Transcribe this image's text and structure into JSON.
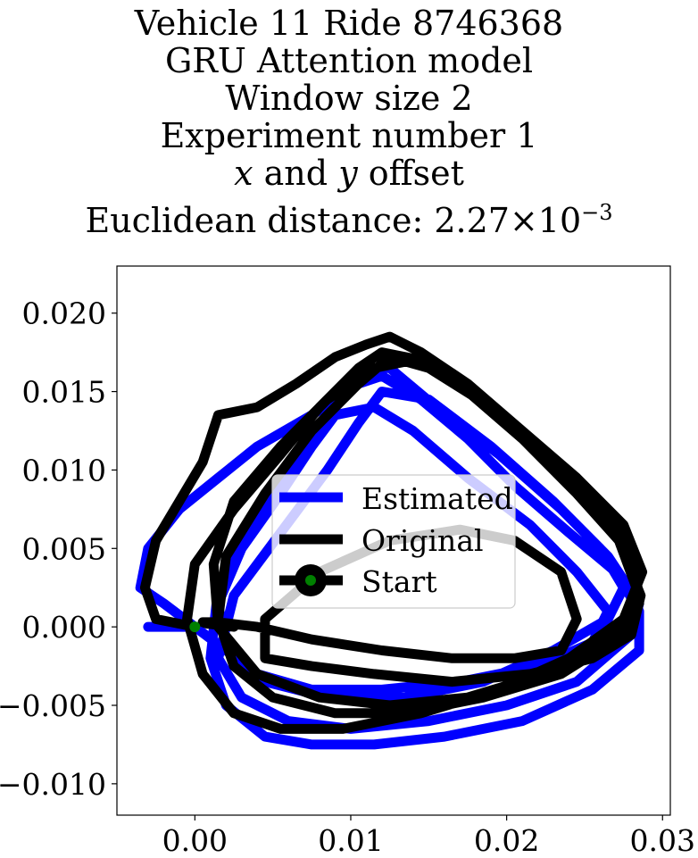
{
  "title": {
    "line1": "Vehicle 11 Ride 8746368",
    "line2": "GRU Attention model",
    "line3": "Window size 2",
    "line4": "Experiment number 1",
    "line5_var_x": "x",
    "line5_and": " and ",
    "line5_var_y": "y",
    "line5_rest": " offset",
    "line6_prefix": "Euclidean distance: 2.27",
    "line6_times": "×",
    "line6_base": "10",
    "line6_exp": "−3"
  },
  "colors": {
    "estimated": "#0000ff",
    "original": "#000000",
    "start_marker": "#008000"
  },
  "chart_data": {
    "type": "line",
    "xlim": [
      -0.005,
      0.0305
    ],
    "ylim": [
      -0.012,
      0.023
    ],
    "x_ticks": [
      0.0,
      0.01,
      0.02,
      0.03
    ],
    "x_tick_labels": [
      "0.00",
      "0.01",
      "0.02",
      "0.03"
    ],
    "y_ticks": [
      -0.01,
      -0.005,
      0.0,
      0.005,
      0.01,
      0.015,
      0.02
    ],
    "y_tick_labels": [
      "−0.010",
      "−0.005",
      "0.000",
      "0.005",
      "0.010",
      "0.015",
      "0.020"
    ],
    "grid": false,
    "legend_position": "center",
    "legend": [
      {
        "label": "Estimated",
        "color": "#0000ff",
        "style": "line"
      },
      {
        "label": "Original",
        "color": "#000000",
        "style": "line"
      },
      {
        "label": "Start",
        "color": "#000000",
        "style": "line-marker",
        "marker_color": "#008000"
      }
    ],
    "start_point": {
      "x": 0.0,
      "y": 0.0
    },
    "series": [
      {
        "name": "Estimated",
        "color": "#0000ff",
        "x": [
          0.0,
          -0.002,
          -0.0035,
          -0.003,
          -0.001,
          0.0015,
          0.004,
          0.0075,
          0.0105,
          0.012,
          0.0145,
          0.0175,
          0.0205,
          0.024,
          0.027,
          0.0285,
          0.0285,
          0.0255,
          0.021,
          0.016,
          0.0115,
          0.0075,
          0.0045,
          0.002,
          0.001,
          0.0015,
          0.0035,
          0.0065,
          0.009,
          0.011,
          0.0125,
          0.0155,
          0.0195,
          0.0235,
          0.0265,
          0.0285,
          0.028,
          0.0245,
          0.02,
          0.015,
          0.01,
          0.006,
          0.003,
          0.0015,
          0.0025,
          0.0055,
          0.0085,
          0.0105,
          0.012,
          0.015,
          0.019,
          0.023,
          0.026,
          0.0275,
          0.0265,
          0.023,
          0.0185,
          0.0135,
          0.0085,
          0.0045,
          0.002,
          0.0015,
          0.003,
          0.0055,
          0.0075,
          0.009,
          0.0115,
          0.014,
          0.0175,
          0.0215,
          0.0245,
          0.0265,
          0.0255,
          0.022,
          0.017,
          0.012,
          0.0075,
          0.004,
          0.002,
          0.0,
          -0.003
        ],
        "y": [
          0.0,
          0.0015,
          0.0025,
          0.005,
          0.0075,
          0.0095,
          0.0115,
          0.0135,
          0.0155,
          0.016,
          0.0145,
          0.012,
          0.009,
          0.006,
          0.0035,
          0.001,
          -0.0015,
          -0.004,
          -0.006,
          -0.007,
          -0.0075,
          -0.0075,
          -0.007,
          -0.005,
          -0.002,
          0.0025,
          0.0065,
          0.0105,
          0.014,
          0.0165,
          0.0165,
          0.014,
          0.011,
          0.0075,
          0.0045,
          0.0015,
          -0.0005,
          -0.0035,
          -0.005,
          -0.006,
          -0.0065,
          -0.006,
          -0.0045,
          -0.002,
          0.002,
          0.006,
          0.01,
          0.013,
          0.015,
          0.0145,
          0.0115,
          0.008,
          0.005,
          0.0025,
          0.0005,
          -0.0015,
          -0.0035,
          -0.0045,
          -0.0045,
          -0.0035,
          -0.0015,
          0.0015,
          0.005,
          0.0085,
          0.0115,
          0.0135,
          0.014,
          0.0125,
          0.0095,
          0.0065,
          0.0035,
          0.001,
          -0.001,
          -0.0025,
          -0.0035,
          -0.004,
          -0.004,
          -0.003,
          -0.0015,
          0.0,
          0.0
        ]
      },
      {
        "name": "Original",
        "color": "#000000",
        "x": [
          0.0,
          -0.0025,
          -0.0032,
          -0.0025,
          -0.001,
          0.0005,
          0.001,
          0.0015,
          0.004,
          0.0065,
          0.009,
          0.011,
          0.0125,
          0.0145,
          0.0175,
          0.021,
          0.0245,
          0.0275,
          0.0287,
          0.0275,
          0.024,
          0.0195,
          0.0145,
          0.0095,
          0.0055,
          0.0025,
          0.0005,
          -0.0005,
          0.0,
          0.0025,
          0.0055,
          0.008,
          0.0105,
          0.012,
          0.0145,
          0.0175,
          0.021,
          0.0245,
          0.0272,
          0.0285,
          0.0275,
          0.0235,
          0.0185,
          0.0135,
          0.009,
          0.005,
          0.0025,
          0.0015,
          0.002,
          0.0045,
          0.0075,
          0.0105,
          0.0125,
          0.015,
          0.019,
          0.0225,
          0.026,
          0.0282,
          0.0285,
          0.0265,
          0.0225,
          0.0175,
          0.0125,
          0.008,
          0.004,
          0.0015,
          0.0012,
          0.0025,
          0.0055,
          0.0085,
          0.0115,
          0.014,
          0.0175,
          0.021,
          0.0245,
          0.0272,
          0.0286,
          0.028,
          0.0255,
          0.0215,
          0.0165,
          0.0115,
          0.0075,
          0.0045,
          0.0045,
          0.008,
          0.0125,
          0.017,
          0.0205,
          0.0235,
          0.0245,
          0.0235,
          0.0205,
          0.0165,
          0.012,
          0.0075,
          0.004,
          0.0015,
          0.0005,
          0.0008,
          0.0025
        ],
        "y": [
          0.0,
          0.0005,
          0.0025,
          0.0055,
          0.008,
          0.0105,
          0.012,
          0.0135,
          0.014,
          0.0155,
          0.0172,
          0.018,
          0.0185,
          0.0175,
          0.0155,
          0.0125,
          0.0095,
          0.0065,
          0.0035,
          0.0005,
          -0.002,
          -0.004,
          -0.0055,
          -0.0065,
          -0.0065,
          -0.0055,
          -0.003,
          0.0005,
          0.004,
          0.0075,
          0.011,
          0.014,
          0.0165,
          0.0175,
          0.017,
          0.015,
          0.012,
          0.0085,
          0.0055,
          0.002,
          -0.0005,
          -0.003,
          -0.0045,
          -0.0055,
          -0.0055,
          -0.0045,
          -0.0025,
          0.0005,
          0.0045,
          0.0085,
          0.0125,
          0.0155,
          0.0172,
          0.0165,
          0.014,
          0.011,
          0.0075,
          0.0045,
          0.0015,
          -0.001,
          -0.003,
          -0.0045,
          -0.005,
          -0.0045,
          -0.003,
          0.0,
          0.004,
          0.008,
          0.0115,
          0.0145,
          0.0165,
          0.017,
          0.0155,
          0.0125,
          0.009,
          0.0055,
          0.002,
          -0.0005,
          -0.002,
          -0.003,
          -0.0035,
          -0.003,
          -0.0025,
          -0.002,
          0.0005,
          0.0035,
          0.0055,
          0.0062,
          0.0055,
          0.0035,
          0.0005,
          -0.0015,
          -0.002,
          -0.002,
          -0.0015,
          -0.0008,
          0.0,
          0.0003,
          0.0003,
          0.0002,
          0.0
        ]
      }
    ]
  }
}
